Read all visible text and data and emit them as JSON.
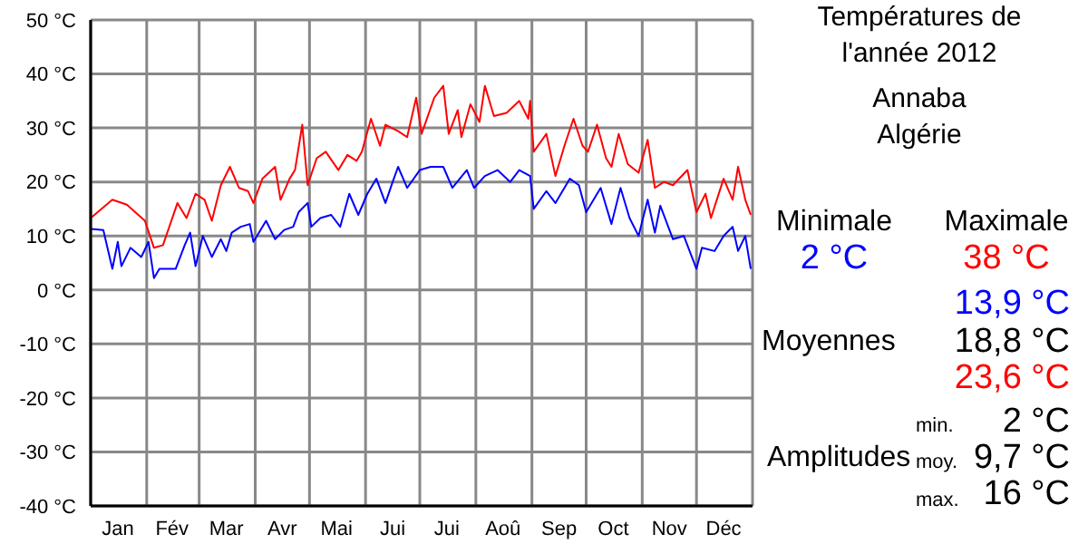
{
  "chart_data": {
    "type": "line",
    "title": "Températures de l'année 2012",
    "subtitle": "Annaba Algérie",
    "xlim": [
      "2012-01-01",
      "2013-01-01"
    ],
    "xticks": [
      {
        "value": "2012-01-01",
        "label": null
      },
      {
        "value": "2012-01-16",
        "label": "Jan"
      },
      {
        "value": "2012-02-01",
        "label": null
      },
      {
        "value": "2012-02-15",
        "label": "Fév"
      },
      {
        "value": "2012-03-01",
        "label": null
      },
      {
        "value": "2012-03-16",
        "label": "Mar"
      },
      {
        "value": "2012-04-01",
        "label": null
      },
      {
        "value": "2012-04-16",
        "label": "Avr"
      },
      {
        "value": "2012-05-01",
        "label": null
      },
      {
        "value": "2012-05-16",
        "label": "Mai"
      },
      {
        "value": "2012-06-01",
        "label": null
      },
      {
        "value": "2012-06-16",
        "label": "Jui"
      },
      {
        "value": "2012-07-01",
        "label": null
      },
      {
        "value": "2012-07-16",
        "label": "Jui"
      },
      {
        "value": "2012-08-01",
        "label": null
      },
      {
        "value": "2012-08-16",
        "label": "Aoû"
      },
      {
        "value": "2012-09-01",
        "label": null
      },
      {
        "value": "2012-09-16",
        "label": "Sep"
      },
      {
        "value": "2012-10-01",
        "label": null
      },
      {
        "value": "2012-10-16",
        "label": "Oct"
      },
      {
        "value": "2012-11-01",
        "label": null
      },
      {
        "value": "2012-11-16",
        "label": "Nov"
      },
      {
        "value": "2012-12-01",
        "label": null
      },
      {
        "value": "2012-12-16",
        "label": "Déc"
      },
      {
        "value": "2013-01-01",
        "label": null
      }
    ],
    "ylim": [
      -40,
      50
    ],
    "yticks": [
      {
        "value": -40,
        "label": "-40 °C"
      },
      {
        "value": -30,
        "label": "-30 °C"
      },
      {
        "value": -20,
        "label": "-20 °C"
      },
      {
        "value": -10,
        "label": "-10 °C"
      },
      {
        "value": 0,
        "label": "0 °C"
      },
      {
        "value": 10,
        "label": "10 °C"
      },
      {
        "value": 20,
        "label": "20 °C"
      },
      {
        "value": 30,
        "label": "30 °C"
      },
      {
        "value": 40,
        "label": "40 °C"
      },
      {
        "value": 50,
        "label": "50 °C"
      }
    ],
    "grid": true,
    "marker": "none",
    "line_style": "solid",
    "series": [
      {
        "color": "#ff0000",
        "x": [
          "2012-01-01",
          "2012-01-13",
          "2012-01-21",
          "2012-01-31",
          "2012-02-05",
          "2012-02-10",
          "2012-02-18",
          "2012-02-23",
          "2012-02-28",
          "2012-03-04",
          "2012-03-08",
          "2012-03-13",
          "2012-03-18",
          "2012-03-23",
          "2012-03-28",
          "2012-03-31",
          "2012-04-05",
          "2012-04-12",
          "2012-04-15",
          "2012-04-20",
          "2012-04-23",
          "2012-04-27",
          "2012-04-30",
          "2012-05-05",
          "2012-05-10",
          "2012-05-17",
          "2012-05-22",
          "2012-05-27",
          "2012-05-30",
          "2012-06-04",
          "2012-06-09",
          "2012-06-12",
          "2012-06-19",
          "2012-06-24",
          "2012-06-29",
          "2012-07-02",
          "2012-07-09",
          "2012-07-14",
          "2012-07-17",
          "2012-07-22",
          "2012-07-24",
          "2012-07-29",
          "2012-08-03",
          "2012-08-06",
          "2012-08-11",
          "2012-08-18",
          "2012-08-25",
          "2012-08-30",
          "2012-08-31",
          "2012-09-02",
          "2012-09-09",
          "2012-09-14",
          "2012-09-19",
          "2012-09-24",
          "2012-09-29",
          "2012-10-02",
          "2012-10-07",
          "2012-10-12",
          "2012-10-15",
          "2012-10-19",
          "2012-10-24",
          "2012-10-30",
          "2012-11-04",
          "2012-11-08",
          "2012-11-13",
          "2012-11-18",
          "2012-11-26",
          "2012-12-01",
          "2012-12-06",
          "2012-12-09",
          "2012-12-16",
          "2012-12-21",
          "2012-12-24",
          "2012-12-28",
          "2012-12-31"
        ],
        "values": [
          13.3,
          16.7,
          15.8,
          12.8,
          7.8,
          8.3,
          16.1,
          13.3,
          17.8,
          16.7,
          12.8,
          19.4,
          22.8,
          18.9,
          18.3,
          16.1,
          20.6,
          22.8,
          16.7,
          20.6,
          22.2,
          30.6,
          19.4,
          24.4,
          25.6,
          22.2,
          25,
          23.9,
          25.6,
          31.7,
          26.7,
          30.6,
          29.4,
          28.3,
          35.6,
          28.9,
          35.6,
          37.8,
          28.9,
          33.3,
          28.3,
          34.4,
          31.1,
          37.8,
          32.2,
          32.8,
          35,
          31.7,
          35,
          25.6,
          28.9,
          21.1,
          26.7,
          31.7,
          26.7,
          25.6,
          30.6,
          24.4,
          22.8,
          28.9,
          23.3,
          21.7,
          27.8,
          18.9,
          20,
          19.4,
          22.2,
          14.4,
          17.8,
          13.3,
          20.6,
          16.7,
          22.8,
          16.7,
          13.9
        ]
      },
      {
        "color": "#0000ff",
        "x": [
          "2012-01-01",
          "2012-01-08",
          "2012-01-13",
          "2012-01-16",
          "2012-01-18",
          "2012-01-23",
          "2012-01-29",
          "2012-02-02",
          "2012-02-05",
          "2012-02-08",
          "2012-02-17",
          "2012-02-22",
          "2012-02-25",
          "2012-02-28",
          "2012-03-03",
          "2012-03-08",
          "2012-03-13",
          "2012-03-16",
          "2012-03-19",
          "2012-03-24",
          "2012-03-29",
          "2012-03-31",
          "2012-04-07",
          "2012-04-12",
          "2012-04-17",
          "2012-04-22",
          "2012-04-25",
          "2012-04-30",
          "2012-05-02",
          "2012-05-07",
          "2012-05-13",
          "2012-05-18",
          "2012-05-23",
          "2012-05-28",
          "2012-06-02",
          "2012-06-07",
          "2012-06-12",
          "2012-06-16",
          "2012-06-19",
          "2012-06-24",
          "2012-07-01",
          "2012-07-07",
          "2012-07-14",
          "2012-07-19",
          "2012-07-27",
          "2012-07-31",
          "2012-08-06",
          "2012-08-13",
          "2012-08-20",
          "2012-08-25",
          "2012-08-31",
          "2012-09-02",
          "2012-09-09",
          "2012-09-14",
          "2012-09-22",
          "2012-09-27",
          "2012-10-01",
          "2012-10-09",
          "2012-10-15",
          "2012-10-20",
          "2012-10-25",
          "2012-10-30",
          "2012-11-04",
          "2012-11-08",
          "2012-11-11",
          "2012-11-18",
          "2012-11-24",
          "2012-12-01",
          "2012-12-04",
          "2012-12-11",
          "2012-12-16",
          "2012-12-21",
          "2012-12-24",
          "2012-12-28",
          "2012-12-31"
        ],
        "values": [
          11.3,
          11.1,
          3.9,
          8.9,
          4.4,
          7.8,
          6.1,
          8.9,
          2.2,
          3.9,
          3.9,
          8.3,
          10.6,
          4.4,
          10,
          6.1,
          9.4,
          7.2,
          10.6,
          11.7,
          12.2,
          8.9,
          12.8,
          9.4,
          11.1,
          11.7,
          14.4,
          16.1,
          11.7,
          13.3,
          13.9,
          11.7,
          17.8,
          13.9,
          17.8,
          20.6,
          16.1,
          20,
          22.8,
          18.9,
          22.2,
          22.8,
          22.8,
          18.9,
          22.2,
          18.9,
          21.1,
          22.2,
          20,
          22.2,
          21.1,
          15,
          18.3,
          16.1,
          20.6,
          19.4,
          14.4,
          18.9,
          12.2,
          18.9,
          13.3,
          10,
          16.7,
          10.6,
          15.6,
          9.4,
          10,
          3.9,
          7.8,
          7.2,
          10,
          11.7,
          7.2,
          10,
          3.9
        ]
      }
    ],
    "annotations": [
      "Minimale",
      "2 °C",
      "Maximale",
      "38 °C",
      "13,9 °C",
      "Moyennes",
      "18,8 °C",
      "23,6 °C",
      "Amplitudes",
      "min.",
      "2 °C",
      "moy.",
      "9,7 °C",
      "max.",
      "16 °C"
    ]
  }
}
